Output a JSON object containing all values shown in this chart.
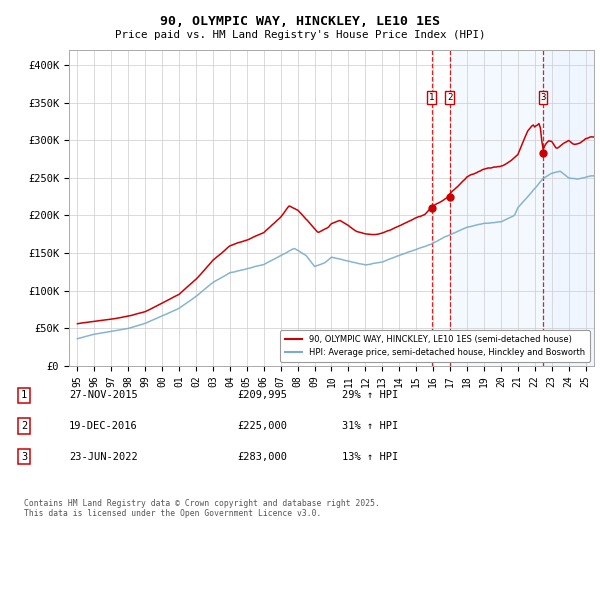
{
  "title": "90, OLYMPIC WAY, HINCKLEY, LE10 1ES",
  "subtitle": "Price paid vs. HM Land Registry's House Price Index (HPI)",
  "legend_line1": "90, OLYMPIC WAY, HINCKLEY, LE10 1ES (semi-detached house)",
  "legend_line2": "HPI: Average price, semi-detached house, Hinckley and Bosworth",
  "footer": "Contains HM Land Registry data © Crown copyright and database right 2025.\nThis data is licensed under the Open Government Licence v3.0.",
  "transactions": [
    {
      "num": 1,
      "date": "27-NOV-2015",
      "price": 209995,
      "pct": "29%",
      "dir": "↑"
    },
    {
      "num": 2,
      "date": "19-DEC-2016",
      "price": 225000,
      "pct": "31%",
      "dir": "↑"
    },
    {
      "num": 3,
      "date": "23-JUN-2022",
      "price": 283000,
      "pct": "13%",
      "dir": "↑"
    }
  ],
  "sale_dates_decimal": [
    2015.91,
    2016.97,
    2022.48
  ],
  "sale_prices": [
    209995,
    225000,
    283000
  ],
  "red_line_color": "#cc0000",
  "blue_line_color": "#7aaccc",
  "dashed_vline_color": "#cc0000",
  "shade_color": "#ddeeff",
  "background_color": "#ffffff",
  "grid_color": "#cccccc",
  "ylim": [
    0,
    420000
  ],
  "xlim_start": 1994.5,
  "xlim_end": 2025.5,
  "yticks": [
    0,
    50000,
    100000,
    150000,
    200000,
    250000,
    300000,
    350000,
    400000
  ],
  "ytick_labels": [
    "£0",
    "£50K",
    "£100K",
    "£150K",
    "£200K",
    "£250K",
    "£300K",
    "£350K",
    "£400K"
  ]
}
